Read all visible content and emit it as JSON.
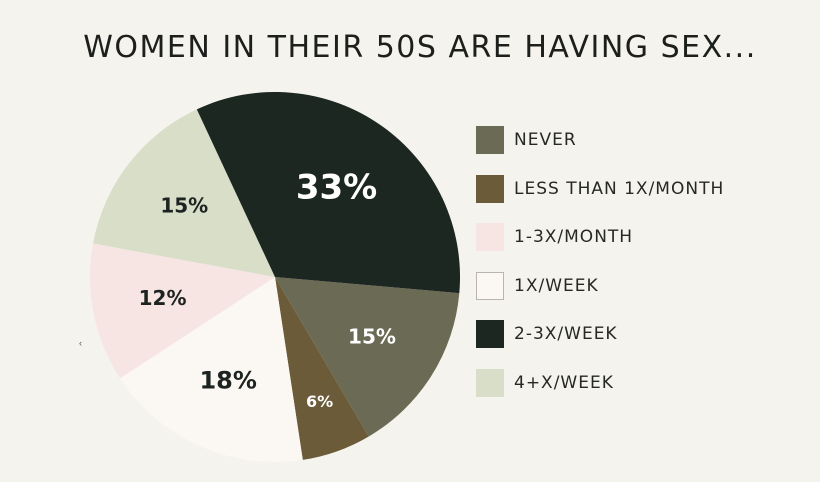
{
  "chart_data": {
    "type": "pie",
    "title": "WOMEN IN THEIR 50S ARE HAVING SEX...",
    "slices": [
      {
        "label": "NEVER",
        "value": 15,
        "display": "15%",
        "color": "#6b6a54",
        "text_color": "#ffffff"
      },
      {
        "label": "LESS THAN 1X/MONTH",
        "value": 6,
        "display": "6%",
        "color": "#6b5b38",
        "text_color": "#ffffff"
      },
      {
        "label": "1X/WEEK",
        "value": 18,
        "display": "18%",
        "color": "#fbf8f3",
        "text_color": "#1d2320"
      },
      {
        "label": "1-3X/MONTH",
        "value": 12,
        "display": "12%",
        "color": "#f6e5e3",
        "text_color": "#1d2320"
      },
      {
        "label": "4+X/WEEK",
        "value": 15,
        "display": "15%",
        "color": "#d8dec8",
        "text_color": "#1d2320"
      },
      {
        "label": "2-3X/WEEK",
        "value": 33,
        "display": "33%",
        "color": "#1d2721",
        "text_color": "#ffffff"
      }
    ],
    "legend": {
      "placement": "right",
      "entries": [
        {
          "label": "NEVER",
          "color": "#6b6a54"
        },
        {
          "label": "LESS THAN 1X/MONTH",
          "color": "#6b5b38"
        },
        {
          "label": "1-3X/MONTH",
          "color": "#f6e5e3"
        },
        {
          "label": "1X/WEEK",
          "color": "#fbf8f3"
        },
        {
          "label": "2-3X/WEEK",
          "color": "#1d2721"
        },
        {
          "label": "4+X/WEEK",
          "color": "#d8dec8"
        }
      ]
    }
  }
}
